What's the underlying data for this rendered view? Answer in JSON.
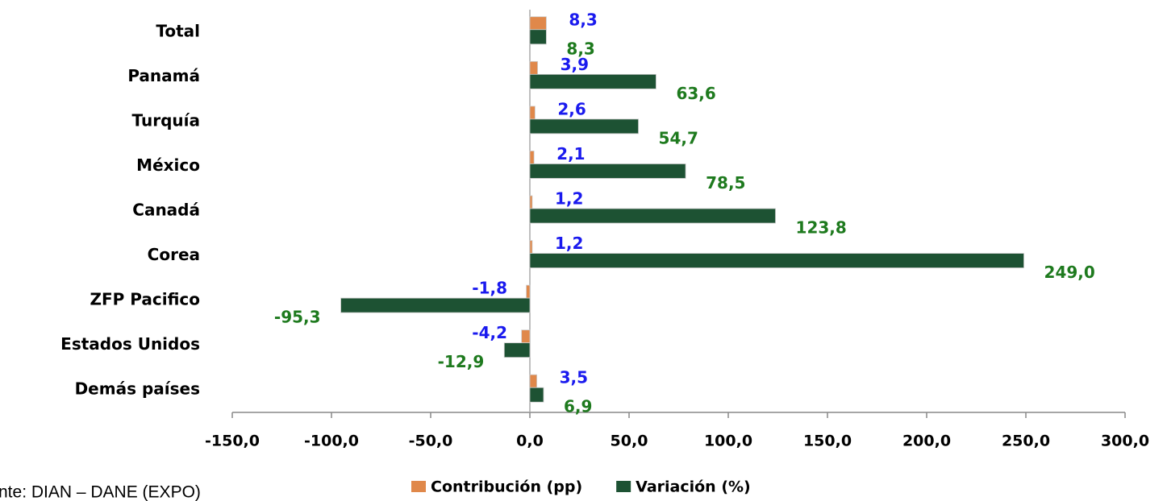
{
  "chart_data": {
    "type": "hbar",
    "categories": [
      "Total",
      "Panamá",
      "Turquía",
      "México",
      "Canadá",
      "Corea",
      "ZFP Pacifico",
      "Estados Unidos",
      "Demás países"
    ],
    "series": [
      {
        "name": "Contribución (pp)",
        "color": "#e0884a",
        "label_color": "#1a1aee",
        "values": [
          8.3,
          3.9,
          2.6,
          2.1,
          1.2,
          1.2,
          -1.8,
          -4.2,
          3.5
        ],
        "value_labels": [
          "8,3",
          "3,9",
          "2,6",
          "2,1",
          "1,2",
          "1,2",
          "-1,8",
          "-4,2",
          "3,5"
        ]
      },
      {
        "name": "Variación (%)",
        "color": "#1d5233",
        "label_color": "#1e7a1e",
        "values": [
          8.3,
          63.6,
          54.7,
          78.5,
          123.8,
          249.0,
          -95.3,
          -12.9,
          6.9
        ],
        "value_labels": [
          "8,3",
          "63,6",
          "54,7",
          "78,5",
          "123,8",
          "249,0",
          "-95,3",
          "-12,9",
          "6,9"
        ]
      }
    ],
    "xlim": [
      -150,
      300
    ],
    "xticks": [
      {
        "value": -150,
        "label": "-150,0"
      },
      {
        "value": -100,
        "label": "-100,0"
      },
      {
        "value": -50,
        "label": "-50,0"
      },
      {
        "value": 0,
        "label": "0,0"
      },
      {
        "value": 50,
        "label": "50,0"
      },
      {
        "value": 100,
        "label": "100,0"
      },
      {
        "value": 150,
        "label": "150,0"
      },
      {
        "value": 200,
        "label": "200,0"
      },
      {
        "value": 250,
        "label": "250,0"
      },
      {
        "value": 300,
        "label": "300,0"
      }
    ],
    "legend": "bottom",
    "source": "nte: DIAN – DANE (EXPO)"
  }
}
